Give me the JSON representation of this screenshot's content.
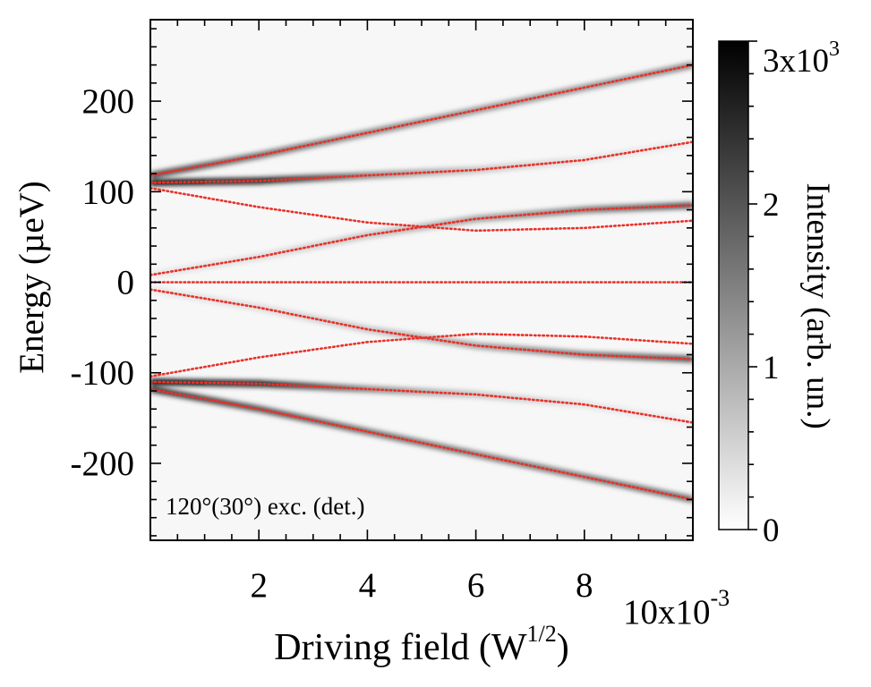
{
  "chart_data": {
    "type": "heatmap",
    "xlabel": "Driving field (W",
    "xlabel_sup": "1/2",
    "xlabel_close": ")",
    "ylabel": "Energy (µeV)",
    "colorbar_label": "Intensity (arb. un.)",
    "colorbar_max_label_base": "3x10",
    "colorbar_max_label_exp": "3",
    "x_multiplier_base": "10x10",
    "x_multiplier_exp": "-3",
    "annotation": "120°(30°) exc. (det.)",
    "xlim": [
      0.0,
      10.0
    ],
    "ylim": [
      -285,
      290
    ],
    "x_ticks": [
      2,
      4,
      6,
      8
    ],
    "x_tick_labels": [
      "2",
      "4",
      "6",
      "8"
    ],
    "y_ticks": [
      200,
      100,
      0,
      -100,
      -200
    ],
    "y_tick_labels": [
      "200",
      "100",
      "0",
      "-100",
      "-200"
    ],
    "colorbar_range": [
      0,
      3000
    ],
    "colorbar_ticks": [
      0,
      1000,
      2000
    ],
    "colorbar_tick_labels": [
      "0",
      "1",
      "2"
    ],
    "colormap": [
      "#ffffff",
      "#000000"
    ],
    "fit_line_color": "#e8312a",
    "fit_lines": [
      {
        "x": [
          0,
          2,
          4,
          6,
          8,
          10
        ],
        "y": [
          118,
          140,
          165,
          190,
          215,
          240
        ]
      },
      {
        "x": [
          0,
          2,
          4,
          6,
          8,
          10
        ],
        "y": [
          110,
          112,
          118,
          124,
          135,
          155
        ]
      },
      {
        "x": [
          0,
          2,
          4,
          6,
          8,
          10
        ],
        "y": [
          104,
          83,
          66,
          57,
          60,
          68
        ]
      },
      {
        "x": [
          0,
          2,
          4,
          6,
          8,
          10
        ],
        "y": [
          8,
          28,
          52,
          70,
          80,
          85
        ]
      },
      {
        "x": [
          0,
          10
        ],
        "y": [
          0,
          0
        ]
      },
      {
        "x": [
          0,
          2,
          4,
          6,
          8,
          10
        ],
        "y": [
          -8,
          -28,
          -52,
          -70,
          -80,
          -85
        ]
      },
      {
        "x": [
          0,
          2,
          4,
          6,
          8,
          10
        ],
        "y": [
          -104,
          -83,
          -66,
          -57,
          -60,
          -68
        ]
      },
      {
        "x": [
          0,
          2,
          4,
          6,
          8,
          10
        ],
        "y": [
          -110,
          -112,
          -118,
          -124,
          -135,
          -155
        ]
      },
      {
        "x": [
          0,
          2,
          4,
          6,
          8,
          10
        ],
        "y": [
          -118,
          -140,
          -165,
          -190,
          -215,
          -240
        ]
      }
    ],
    "intensity_bands": [
      {
        "x": [
          0,
          2,
          4,
          6,
          8,
          10
        ],
        "y": [
          118,
          140,
          165,
          190,
          215,
          240
        ],
        "intensity": [
          0.75,
          0.6,
          0.5,
          0.45,
          0.45,
          0.5
        ]
      },
      {
        "x": [
          0,
          2,
          4,
          6,
          8,
          10
        ],
        "y": [
          110,
          112,
          118,
          124,
          135,
          155
        ],
        "intensity": [
          1.0,
          0.95,
          0.5,
          0.25,
          0.12,
          0.08
        ]
      },
      {
        "x": [
          0,
          2,
          4,
          6,
          8,
          10
        ],
        "y": [
          8,
          28,
          52,
          70,
          80,
          85
        ],
        "intensity": [
          0.1,
          0.15,
          0.25,
          0.4,
          0.55,
          0.7
        ]
      },
      {
        "x": [
          0,
          2,
          4,
          6,
          8,
          10
        ],
        "y": [
          -8,
          -28,
          -52,
          -70,
          -80,
          -85
        ],
        "intensity": [
          0.1,
          0.15,
          0.25,
          0.4,
          0.55,
          0.7
        ]
      },
      {
        "x": [
          0,
          2,
          4,
          6,
          8,
          10
        ],
        "y": [
          -110,
          -112,
          -118,
          -124,
          -135,
          -155
        ],
        "intensity": [
          1.0,
          0.95,
          0.5,
          0.25,
          0.12,
          0.08
        ]
      },
      {
        "x": [
          0,
          2,
          4,
          6,
          8,
          10
        ],
        "y": [
          -118,
          -140,
          -165,
          -190,
          -215,
          -240
        ],
        "intensity": [
          0.85,
          0.7,
          0.6,
          0.55,
          0.55,
          0.6
        ]
      }
    ]
  }
}
